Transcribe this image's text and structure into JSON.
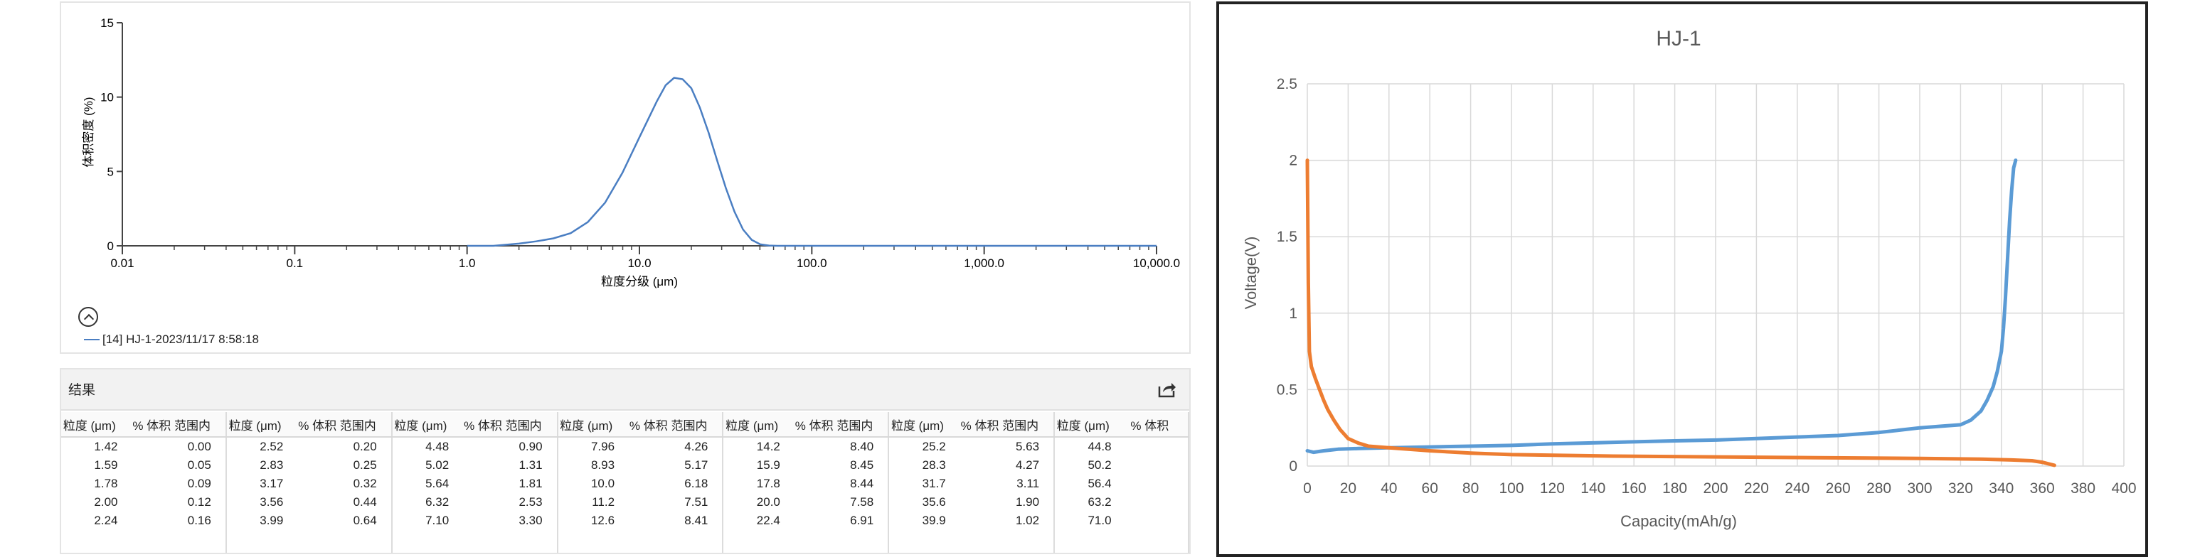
{
  "left_chart": {
    "ylabel": "体积密度 (%)",
    "xlabel": "粒度分级 (μm)",
    "legend": "[14] HJ-1-2023/11/17 8:58:18"
  },
  "results": {
    "title": "结果",
    "col_size": "粒度 (μm)",
    "col_vol": "% 体积 范围内",
    "col_vol_trunc": "% 体积",
    "groups": [
      {
        "sizes": [
          "1.42",
          "1.59",
          "1.78",
          "2.00",
          "2.24"
        ],
        "vols": [
          "0.00",
          "0.05",
          "0.09",
          "0.12",
          "0.16"
        ]
      },
      {
        "sizes": [
          "2.52",
          "2.83",
          "3.17",
          "3.56",
          "3.99"
        ],
        "vols": [
          "0.20",
          "0.25",
          "0.32",
          "0.44",
          "0.64"
        ]
      },
      {
        "sizes": [
          "4.48",
          "5.02",
          "5.64",
          "6.32",
          "7.10"
        ],
        "vols": [
          "0.90",
          "1.31",
          "1.81",
          "2.53",
          "3.30"
        ]
      },
      {
        "sizes": [
          "7.96",
          "8.93",
          "10.0",
          "11.2",
          "12.6"
        ],
        "vols": [
          "4.26",
          "5.17",
          "6.18",
          "7.51",
          "8.41"
        ]
      },
      {
        "sizes": [
          "14.2",
          "15.9",
          "17.8",
          "20.0",
          "22.4"
        ],
        "vols": [
          "8.40",
          "8.45",
          "8.44",
          "7.58",
          "6.91"
        ]
      },
      {
        "sizes": [
          "25.2",
          "28.3",
          "31.7",
          "35.6",
          "39.9"
        ],
        "vols": [
          "5.63",
          "4.27",
          "3.11",
          "1.90",
          "1.02"
        ]
      },
      {
        "sizes": [
          "44.8",
          "50.2",
          "56.4",
          "63.2",
          "71.0"
        ],
        "vols": [
          "",
          "",
          "",
          "",
          ""
        ]
      }
    ]
  },
  "chart_data": [
    {
      "type": "line",
      "title": "",
      "xlabel": "粒度分级 (μm)",
      "ylabel": "体积密度 (%)",
      "xscale": "log",
      "xlim": [
        0.01,
        10000
      ],
      "ylim": [
        0,
        15
      ],
      "xticks": [
        "0.01",
        "0.1",
        "1.0",
        "10.0",
        "100.0",
        "1,000.0",
        "10,000.0"
      ],
      "yticks": [
        "0",
        "5",
        "10",
        "15"
      ],
      "grid": false,
      "series": [
        {
          "name": "[14] HJ-1-2023/11/17 8:58:18",
          "x": [
            1.0,
            1.42,
            2.0,
            2.52,
            3.17,
            3.99,
            5.02,
            6.32,
            7.96,
            10.0,
            12.6,
            14.2,
            15.9,
            17.8,
            20.0,
            22.4,
            25.2,
            28.3,
            31.7,
            35.6,
            39.9,
            44.8,
            50.2,
            56.4,
            63.2,
            71.0,
            10000
          ],
          "y": [
            0,
            0.0,
            0.15,
            0.3,
            0.5,
            0.85,
            1.6,
            2.9,
            4.9,
            7.3,
            9.7,
            10.8,
            11.3,
            11.2,
            10.6,
            9.3,
            7.6,
            5.7,
            3.9,
            2.3,
            1.1,
            0.4,
            0.1,
            0.02,
            0,
            0,
            0
          ]
        }
      ]
    },
    {
      "type": "line",
      "title": "HJ-1",
      "xlabel": "Capacity(mAh/g)",
      "ylabel": "Voltage(V)",
      "xlim": [
        0,
        400
      ],
      "ylim": [
        0,
        2.5
      ],
      "xticks": [
        "0",
        "20",
        "40",
        "60",
        "80",
        "100",
        "120",
        "140",
        "160",
        "180",
        "200",
        "220",
        "240",
        "260",
        "280",
        "300",
        "320",
        "340",
        "360",
        "380",
        "400"
      ],
      "yticks": [
        "0",
        "0.5",
        "1",
        "1.5",
        "2",
        "2.5"
      ],
      "grid": true,
      "colors": {
        "blue": "#5b9bd5",
        "orange": "#ed7d31"
      },
      "series": [
        {
          "name": "",
          "color": "#5b9bd5",
          "x": [
            0,
            3,
            8,
            15,
            25,
            40,
            60,
            80,
            100,
            120,
            150,
            180,
            200,
            220,
            240,
            260,
            280,
            300,
            310,
            320,
            325,
            330,
            333,
            336,
            338,
            340,
            341,
            342,
            343,
            344,
            345,
            346,
            347
          ],
          "y": [
            0.1,
            0.09,
            0.1,
            0.11,
            0.115,
            0.12,
            0.125,
            0.13,
            0.135,
            0.145,
            0.155,
            0.165,
            0.17,
            0.18,
            0.19,
            0.2,
            0.22,
            0.25,
            0.26,
            0.27,
            0.3,
            0.36,
            0.43,
            0.52,
            0.62,
            0.75,
            0.9,
            1.1,
            1.35,
            1.6,
            1.8,
            1.95,
            2.0
          ]
        },
        {
          "name": "",
          "color": "#ed7d31",
          "x": [
            0,
            0.5,
            1,
            2,
            4,
            6,
            8,
            10,
            13,
            16,
            20,
            25,
            30,
            40,
            60,
            80,
            100,
            150,
            200,
            250,
            300,
            330,
            345,
            355,
            360,
            363,
            366
          ],
          "y": [
            2.0,
            1.2,
            0.75,
            0.65,
            0.57,
            0.5,
            0.43,
            0.37,
            0.3,
            0.24,
            0.18,
            0.15,
            0.13,
            0.12,
            0.1,
            0.085,
            0.075,
            0.065,
            0.06,
            0.055,
            0.05,
            0.045,
            0.04,
            0.035,
            0.025,
            0.015,
            0.005
          ]
        }
      ]
    }
  ]
}
